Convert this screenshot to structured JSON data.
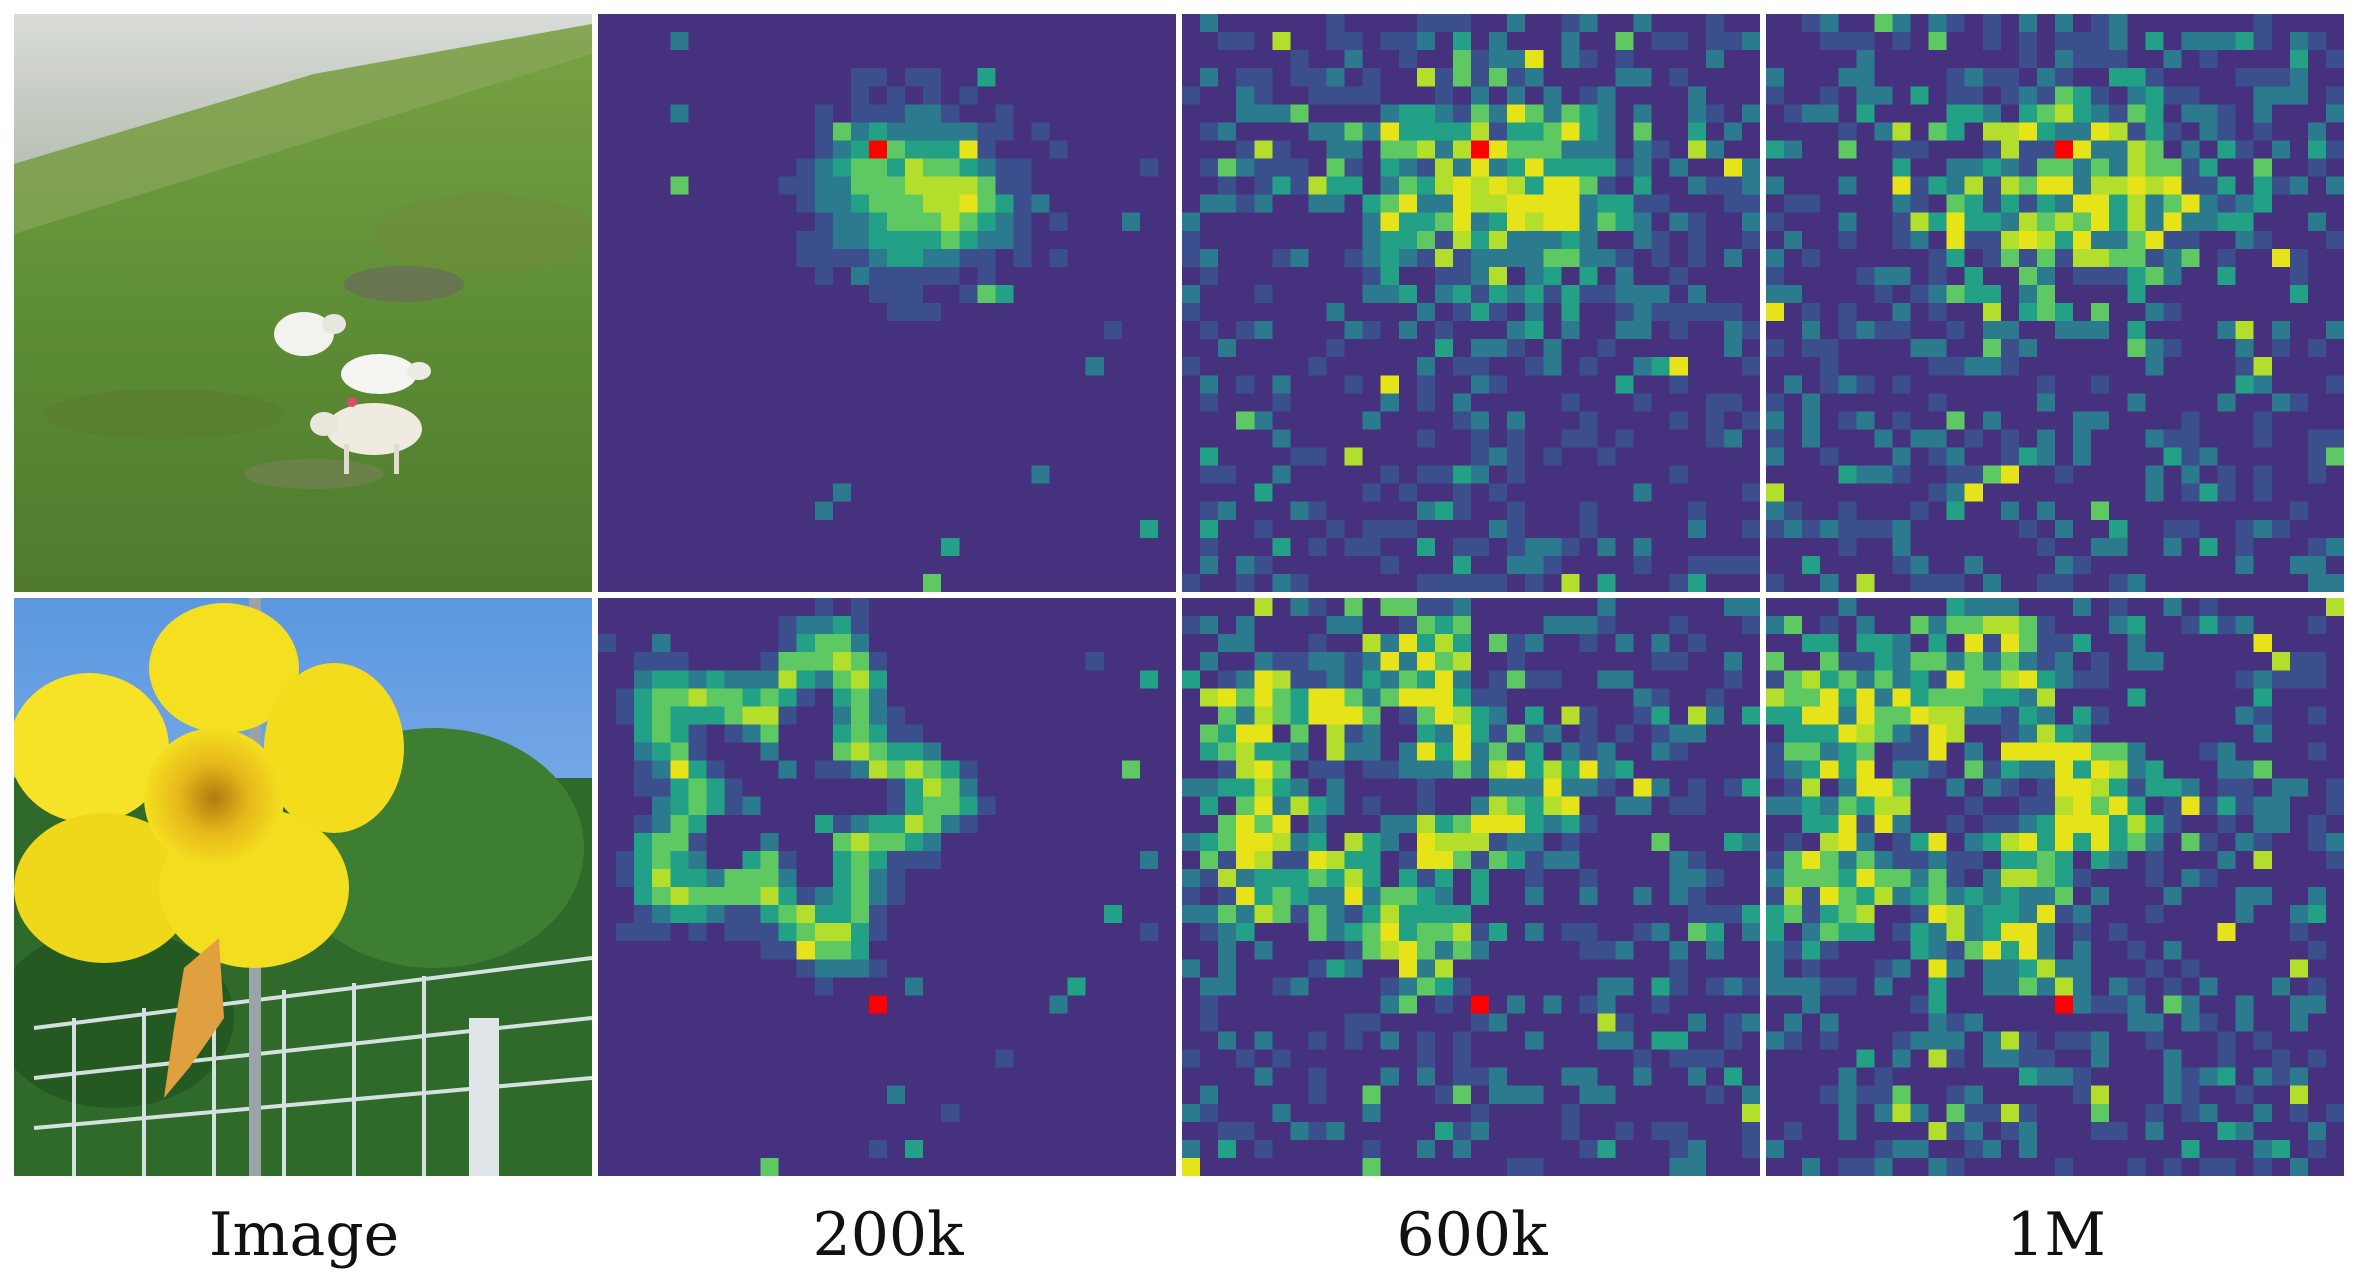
{
  "figure": {
    "columns": [
      {
        "label": "Image"
      },
      {
        "label": "200k"
      },
      {
        "label": "600k"
      },
      {
        "label": "1M"
      }
    ],
    "rows": [
      {
        "subject": "sheep-on-hillside"
      },
      {
        "subject": "yellow-flower"
      }
    ],
    "colors": {
      "query_marker": "#ff0000",
      "colormap": [
        "#46317f",
        "#3b4f8c",
        "#2b7a8e",
        "#22a186",
        "#5ec962",
        "#b4de2c",
        "#e6e419"
      ]
    }
  }
}
